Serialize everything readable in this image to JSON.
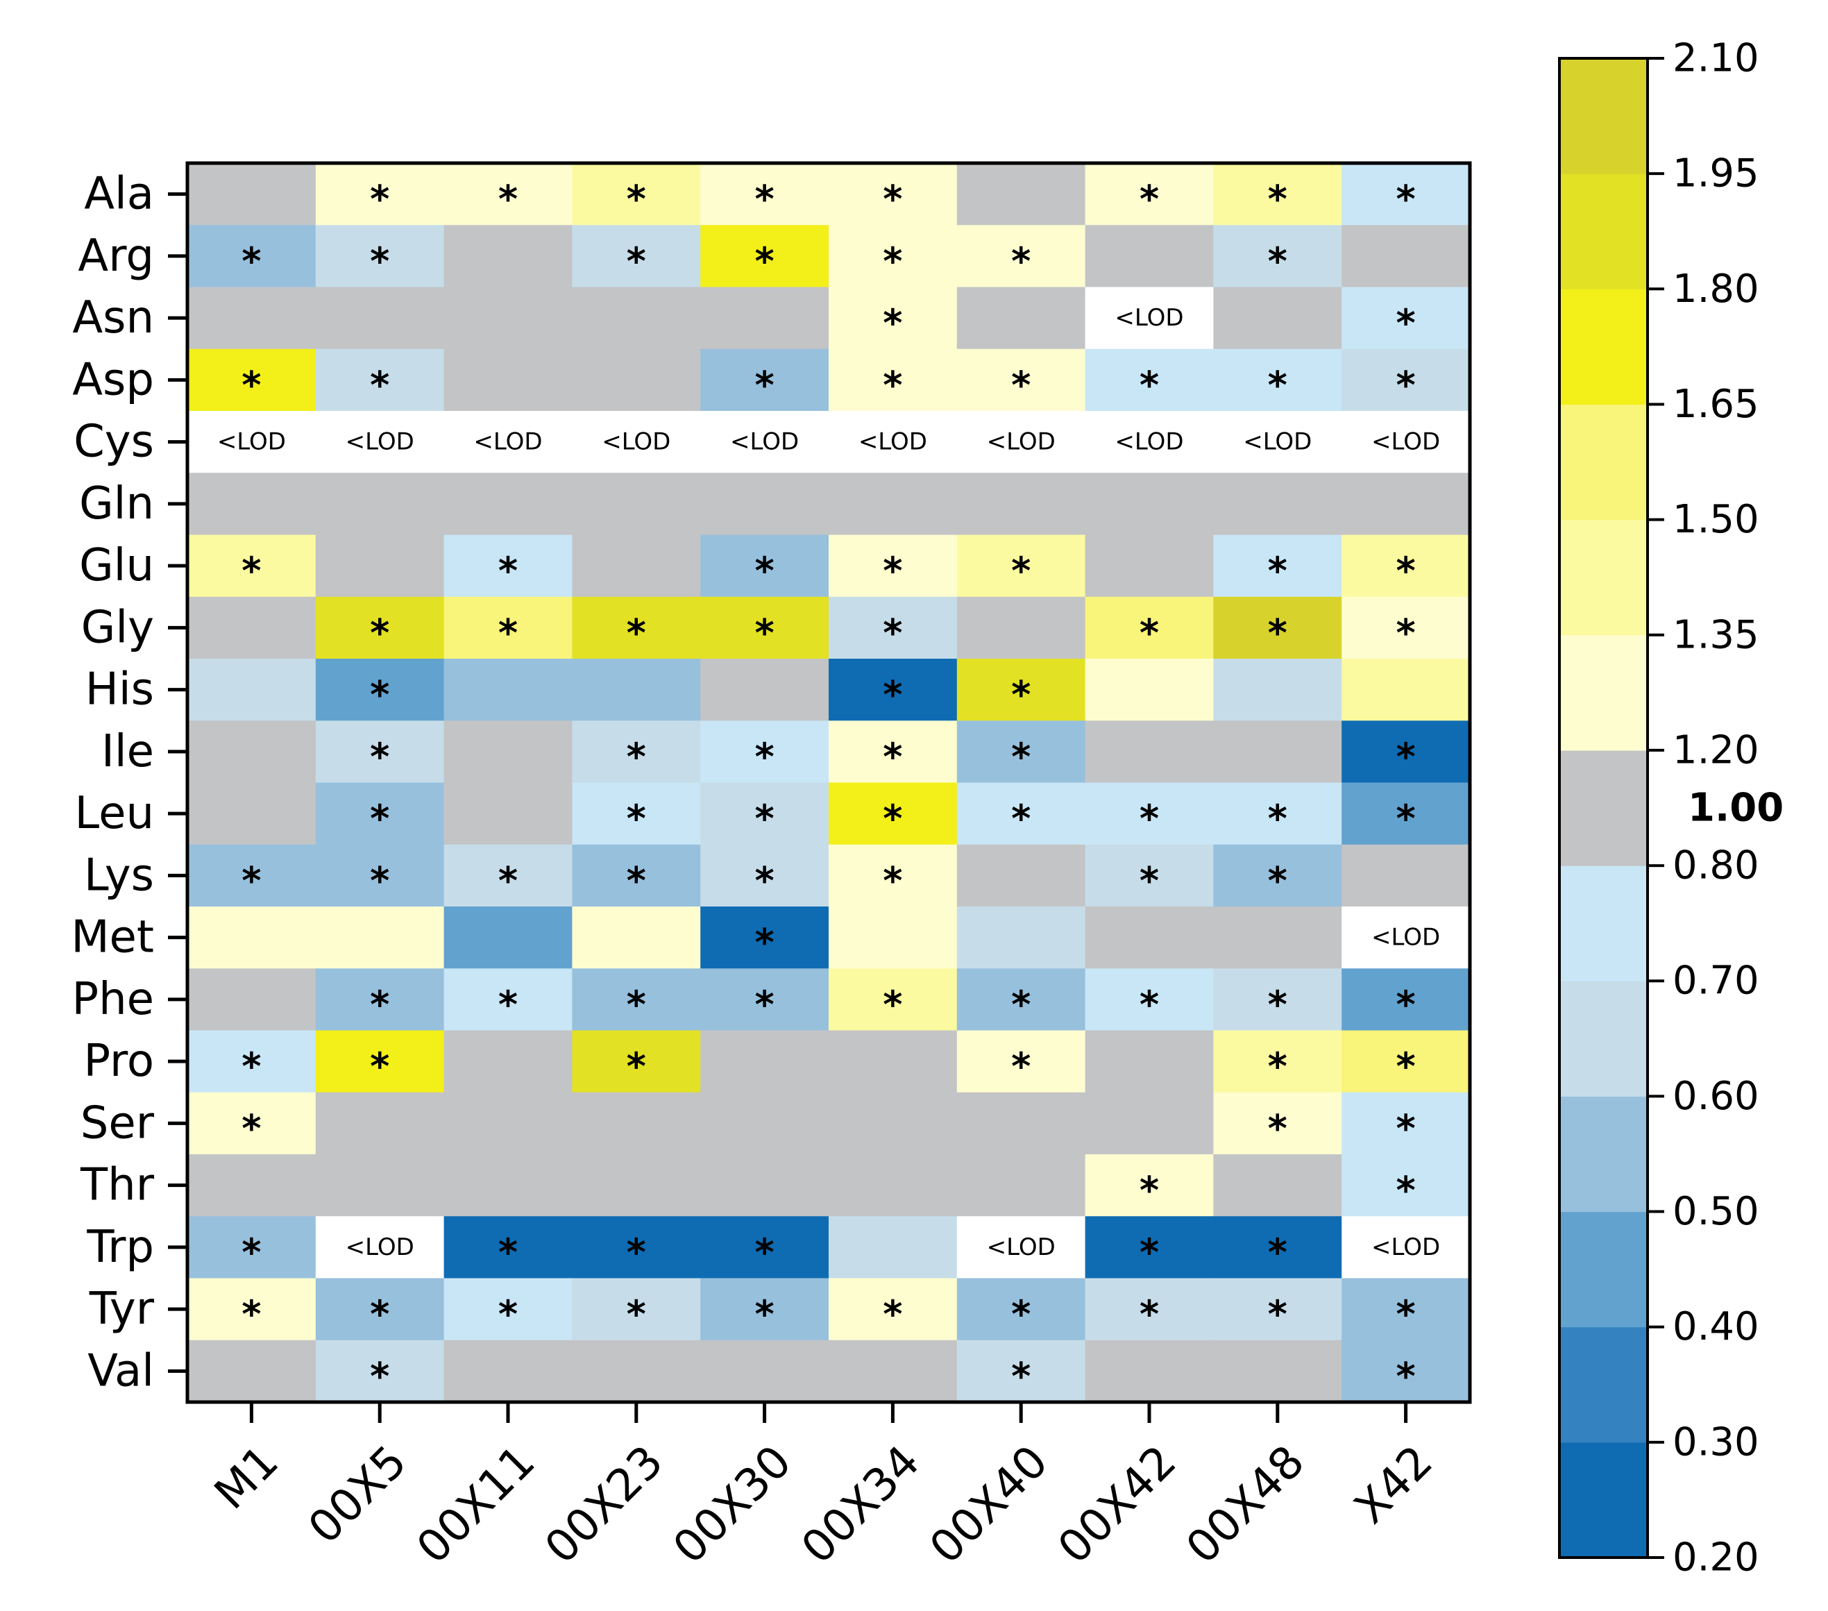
{
  "chart_data": {
    "type": "heatmap",
    "rows": [
      "Ala",
      "Arg",
      "Asn",
      "Asp",
      "Cys",
      "Gln",
      "Glu",
      "Gly",
      "His",
      "Ile",
      "Leu",
      "Lys",
      "Met",
      "Phe",
      "Pro",
      "Ser",
      "Thr",
      "Trp",
      "Tyr",
      "Val"
    ],
    "columns": [
      "M1",
      "00X5",
      "00X11",
      "00X23",
      "00X30",
      "00X34",
      "00X40",
      "00X42",
      "00X48",
      "X42"
    ],
    "lod_label": "<LOD",
    "significance_marker": "*",
    "values": [
      [
        1.0,
        1.25,
        1.25,
        1.4,
        1.25,
        1.25,
        1.0,
        1.25,
        1.4,
        0.75
      ],
      [
        0.55,
        0.65,
        1.0,
        0.65,
        1.7,
        1.25,
        1.25,
        1.0,
        0.65,
        1.0
      ],
      [
        1.0,
        1.0,
        1.0,
        1.0,
        1.0,
        1.25,
        1.0,
        "<LOD",
        1.0,
        0.75
      ],
      [
        1.7,
        0.65,
        1.0,
        1.0,
        0.55,
        1.25,
        1.25,
        0.75,
        0.75,
        0.65
      ],
      [
        "<LOD",
        "<LOD",
        "<LOD",
        "<LOD",
        "<LOD",
        "<LOD",
        "<LOD",
        "<LOD",
        "<LOD",
        "<LOD"
      ],
      [
        1.0,
        1.0,
        1.0,
        1.0,
        1.0,
        1.0,
        1.0,
        1.0,
        1.0,
        1.0
      ],
      [
        1.4,
        1.0,
        0.75,
        1.0,
        0.55,
        1.25,
        1.4,
        1.0,
        0.75,
        1.4
      ],
      [
        1.0,
        1.85,
        1.55,
        1.85,
        1.85,
        0.65,
        1.0,
        1.55,
        2.0,
        1.25
      ],
      [
        0.65,
        0.45,
        0.55,
        0.55,
        1.0,
        0.25,
        1.85,
        1.25,
        0.65,
        1.4
      ],
      [
        1.0,
        0.65,
        1.0,
        0.65,
        0.75,
        1.25,
        0.55,
        1.0,
        1.0,
        0.25
      ],
      [
        1.0,
        0.55,
        1.0,
        0.75,
        0.65,
        1.7,
        0.75,
        0.75,
        0.75,
        0.45
      ],
      [
        0.55,
        0.55,
        0.65,
        0.55,
        0.65,
        1.25,
        1.0,
        0.65,
        0.55,
        1.0
      ],
      [
        1.25,
        1.25,
        0.45,
        1.25,
        0.25,
        1.25,
        0.65,
        1.0,
        1.0,
        "<LOD"
      ],
      [
        1.0,
        0.55,
        0.75,
        0.55,
        0.55,
        1.4,
        0.55,
        0.75,
        0.65,
        0.45
      ],
      [
        0.75,
        1.7,
        1.0,
        1.85,
        1.0,
        1.0,
        1.25,
        1.0,
        1.4,
        1.55
      ],
      [
        1.25,
        1.0,
        1.0,
        1.0,
        1.0,
        1.0,
        1.0,
        1.0,
        1.25,
        0.75
      ],
      [
        1.0,
        1.0,
        1.0,
        1.0,
        1.0,
        1.0,
        1.0,
        1.25,
        1.0,
        0.75
      ],
      [
        0.55,
        "<LOD",
        0.25,
        0.25,
        0.25,
        0.65,
        "<LOD",
        0.25,
        0.25,
        "<LOD"
      ],
      [
        1.25,
        0.55,
        0.75,
        0.65,
        0.55,
        1.25,
        0.55,
        0.65,
        0.65,
        0.55
      ],
      [
        1.0,
        0.65,
        1.0,
        1.0,
        1.0,
        1.0,
        0.65,
        1.0,
        1.0,
        0.55
      ]
    ],
    "significant": [
      [
        0,
        1,
        1,
        1,
        1,
        1,
        0,
        1,
        1,
        1
      ],
      [
        1,
        1,
        0,
        1,
        1,
        1,
        1,
        0,
        1,
        0
      ],
      [
        0,
        0,
        0,
        0,
        0,
        1,
        0,
        0,
        0,
        1
      ],
      [
        1,
        1,
        0,
        0,
        1,
        1,
        1,
        1,
        1,
        1
      ],
      [
        0,
        0,
        0,
        0,
        0,
        0,
        0,
        0,
        0,
        0
      ],
      [
        0,
        0,
        0,
        0,
        0,
        0,
        0,
        0,
        0,
        0
      ],
      [
        1,
        0,
        1,
        0,
        1,
        1,
        1,
        0,
        1,
        1
      ],
      [
        0,
        1,
        1,
        1,
        1,
        1,
        0,
        1,
        1,
        1
      ],
      [
        0,
        1,
        0,
        0,
        0,
        1,
        1,
        0,
        0,
        0
      ],
      [
        0,
        1,
        0,
        1,
        1,
        1,
        1,
        0,
        0,
        1
      ],
      [
        0,
        1,
        0,
        1,
        1,
        1,
        1,
        1,
        1,
        1
      ],
      [
        1,
        1,
        1,
        1,
        1,
        1,
        0,
        1,
        1,
        0
      ],
      [
        0,
        0,
        0,
        0,
        1,
        0,
        0,
        0,
        0,
        0
      ],
      [
        0,
        1,
        1,
        1,
        1,
        1,
        1,
        1,
        1,
        1
      ],
      [
        1,
        1,
        0,
        1,
        0,
        0,
        1,
        0,
        1,
        1
      ],
      [
        1,
        0,
        0,
        0,
        0,
        0,
        0,
        0,
        1,
        1
      ],
      [
        0,
        0,
        0,
        0,
        0,
        0,
        0,
        1,
        0,
        1
      ],
      [
        1,
        0,
        1,
        1,
        1,
        0,
        0,
        1,
        1,
        0
      ],
      [
        1,
        1,
        1,
        1,
        1,
        1,
        1,
        1,
        1,
        1
      ],
      [
        0,
        1,
        0,
        0,
        0,
        0,
        1,
        0,
        0,
        1
      ]
    ],
    "colorbar": {
      "bins": [
        {
          "min": 0.2,
          "max": 0.3,
          "color": "#0f6cb3"
        },
        {
          "min": 0.3,
          "max": 0.4,
          "color": "#3582c0"
        },
        {
          "min": 0.4,
          "max": 0.5,
          "color": "#62a2cf"
        },
        {
          "min": 0.5,
          "max": 0.6,
          "color": "#97c0dd"
        },
        {
          "min": 0.6,
          "max": 0.7,
          "color": "#c6dde9"
        },
        {
          "min": 0.7,
          "max": 0.8,
          "color": "#c8e6f6"
        },
        {
          "min": 0.8,
          "max": 1.2,
          "color": "#c3c4c6"
        },
        {
          "min": 1.2,
          "max": 1.35,
          "color": "#fefdd0"
        },
        {
          "min": 1.35,
          "max": 1.5,
          "color": "#fcfaa0"
        },
        {
          "min": 1.5,
          "max": 1.65,
          "color": "#f9f47a"
        },
        {
          "min": 1.65,
          "max": 1.8,
          "color": "#f3ef19"
        },
        {
          "min": 1.8,
          "max": 1.95,
          "color": "#e3e124"
        },
        {
          "min": 1.95,
          "max": 2.1,
          "color": "#d7d32c"
        }
      ],
      "tick_values": [
        0.2,
        0.3,
        0.4,
        0.5,
        0.6,
        0.7,
        0.8,
        1.2,
        1.35,
        1.5,
        1.65,
        1.8,
        1.95,
        2.1
      ],
      "tick_labels": [
        "0.20",
        "0.30",
        "0.40",
        "0.50",
        "0.60",
        "0.70",
        "0.80",
        "1.20",
        "1.35",
        "1.50",
        "1.65",
        "1.80",
        "1.95",
        "2.10"
      ],
      "center_label": "1.00",
      "lod_color": "#ffffff"
    }
  }
}
